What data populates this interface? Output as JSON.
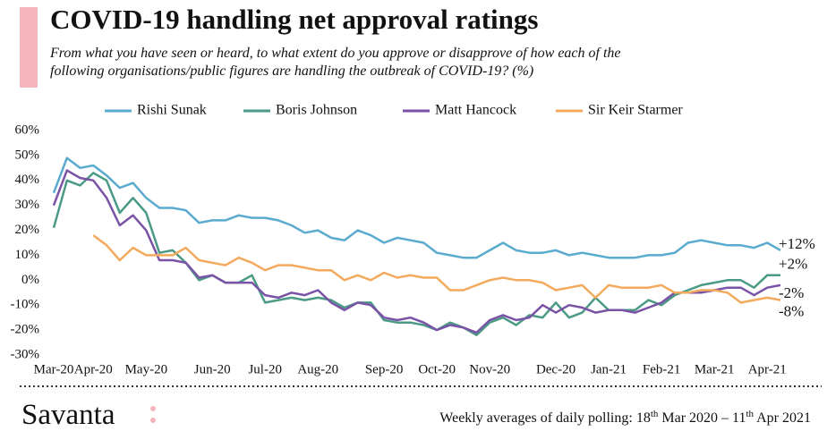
{
  "chart_data": {
    "type": "line",
    "title": "COVID-19 handling net approval ratings",
    "subtitle": [
      "From what you have seen or heard, to what extent do you approve or disapprove of how each of the",
      "following organisations/public figures are handling the outbreak of COVID-19? (%)"
    ],
    "categories": [
      "Mar-20",
      null,
      null,
      "Apr-20",
      null,
      null,
      null,
      "May-20",
      null,
      null,
      null,
      null,
      "Jun-20",
      null,
      null,
      null,
      "Jul-20",
      null,
      null,
      null,
      "Aug-20",
      null,
      null,
      null,
      null,
      "Sep-20",
      null,
      null,
      null,
      "Oct-20",
      null,
      null,
      null,
      "Nov-20",
      null,
      null,
      null,
      null,
      "Dec-20",
      null,
      null,
      null,
      "Jan-21",
      null,
      null,
      null,
      "Feb-21",
      null,
      null,
      null,
      "Mar-21",
      null,
      null,
      null,
      "Apr-21",
      null
    ],
    "ylim": [
      -30,
      60
    ],
    "yticks": [
      {
        "value": -30,
        "label": "-30%"
      },
      {
        "value": -20,
        "label": "-20%"
      },
      {
        "value": -10,
        "label": "-10%"
      },
      {
        "value": 0,
        "label": "0%"
      },
      {
        "value": 10,
        "label": "10%"
      },
      {
        "value": 20,
        "label": "20%"
      },
      {
        "value": 30,
        "label": "30%"
      },
      {
        "value": 40,
        "label": "40%"
      },
      {
        "value": 50,
        "label": "50%"
      },
      {
        "value": 60,
        "label": "60%"
      }
    ],
    "series": [
      {
        "name": "Rishi Sunak",
        "color": "#5aabce",
        "values": [
          35,
          49,
          45,
          46,
          42,
          37,
          39,
          33,
          29,
          29,
          28,
          23,
          24,
          24,
          26,
          25,
          25,
          24,
          22,
          19,
          20,
          17,
          16,
          20,
          18,
          15,
          17,
          16,
          15,
          11,
          10,
          9,
          9,
          12,
          15,
          12,
          11,
          11,
          12,
          10,
          11,
          10,
          9,
          9,
          9,
          10,
          10,
          11,
          15,
          16,
          15,
          14,
          14,
          13,
          15,
          12
        ],
        "end_label": "+12%"
      },
      {
        "name": "Boris Johnson",
        "color": "#4a9a86",
        "values": [
          21,
          40,
          38,
          43,
          40,
          27,
          33,
          27,
          11,
          12,
          7,
          0,
          2,
          -1,
          -1,
          2,
          -9,
          -8,
          -7,
          -8,
          -7,
          -8,
          -11,
          -9,
          -9,
          -16,
          -17,
          -17,
          -18,
          -20,
          -17,
          -19,
          -22,
          -17,
          -15,
          -18,
          -14,
          -15,
          -9,
          -15,
          -13,
          -7,
          -12,
          -12,
          -12,
          -8,
          -10,
          -6,
          -4,
          -2,
          -1,
          0,
          0,
          -3,
          2,
          2
        ],
        "end_label": "+2%"
      },
      {
        "name": "Matt Hancock",
        "color": "#7a52a6",
        "values": [
          30,
          44,
          41,
          40,
          33,
          22,
          26,
          20,
          8,
          8,
          7,
          1,
          2,
          -1,
          -1,
          -1,
          -6,
          -7,
          -5,
          -6,
          -4,
          -9,
          -12,
          -9,
          -10,
          -15,
          -16,
          -15,
          -17,
          -20,
          -18,
          -19,
          -21,
          -16,
          -14,
          -16,
          -15,
          -10,
          -13,
          -10,
          -11,
          -13,
          -12,
          -12,
          -13,
          -11,
          -9,
          -5,
          -5,
          -5,
          -4,
          -3,
          -3,
          -6,
          -3,
          -2
        ],
        "end_label": "-2%"
      },
      {
        "name": "Sir Keir Starmer",
        "color": "#f4aa5c",
        "values": [
          null,
          null,
          null,
          18,
          14,
          8,
          13,
          10,
          10,
          10,
          13,
          8,
          7,
          6,
          9,
          7,
          4,
          6,
          6,
          5,
          4,
          4,
          0,
          2,
          0,
          3,
          1,
          2,
          1,
          1,
          -4,
          -4,
          -2,
          0,
          1,
          0,
          0,
          -1,
          -4,
          -3,
          -2,
          -7,
          -2,
          -3,
          -3,
          -3,
          -2,
          -5,
          -5,
          -4,
          -4,
          -5,
          -9,
          -8,
          -7,
          -8
        ],
        "end_label": "-8%"
      }
    ],
    "footnote": [
      "Weekly averages of daily polling: 18",
      "th",
      " Mar 2020 – 11",
      "th",
      " Apr 2021"
    ],
    "brand": "Savanta"
  }
}
